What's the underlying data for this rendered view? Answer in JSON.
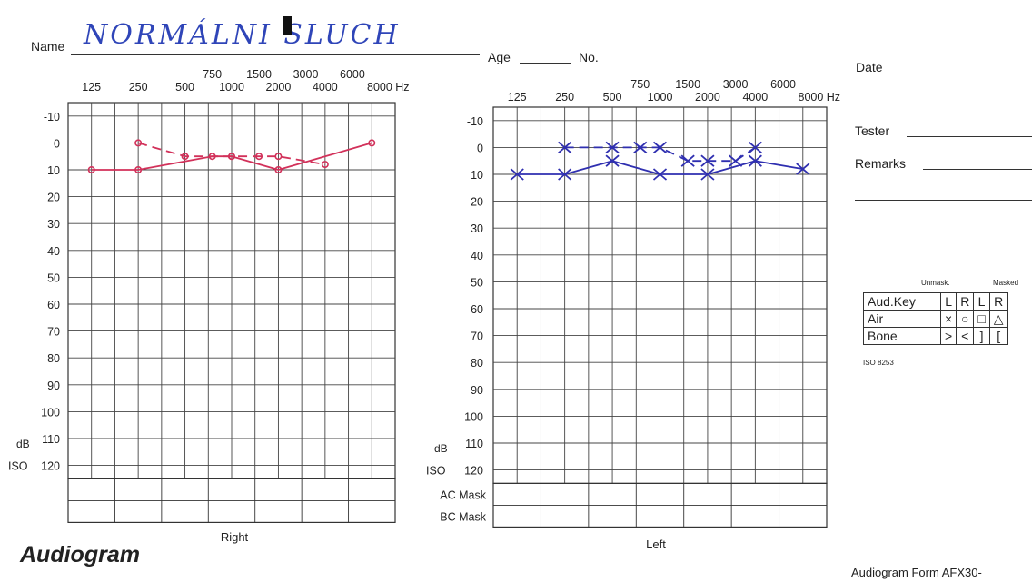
{
  "header": {
    "name_label": "Name",
    "name_value": "NORMÁLNI SLUCH",
    "age_label": "Age",
    "no_label": "No.",
    "date_label": "Date",
    "tester_label": "Tester",
    "remarks_label": "Remarks"
  },
  "audio_key": {
    "col_head_unmasked": "Unmask.",
    "col_head_masked": "Masked",
    "header_cells": [
      "Aud.Key",
      "L",
      "R",
      "L",
      "R"
    ],
    "air_cells": [
      "Air",
      "×",
      "○",
      "□",
      "△"
    ],
    "bone_cells": [
      "Bone",
      ">",
      "<",
      "]",
      "["
    ],
    "standard": "ISO 8253"
  },
  "footer": {
    "title": "Audiogram",
    "form_id": "Audiogram Form AFX30-"
  },
  "colors": {
    "right_ear": "#d2315a",
    "left_ear": "#2f2fb0"
  },
  "chart_data": [
    {
      "type": "line",
      "caption": "Right",
      "x_scale": "log",
      "x_ticks_lower": [
        "125",
        "250",
        "500",
        "1000",
        "2000",
        "4000",
        "8000 Hz"
      ],
      "x_ticks_upper": [
        "750",
        "1500",
        "3000",
        "6000"
      ],
      "y_ticks": [
        "-10",
        "0",
        "10",
        "20",
        "30",
        "40",
        "50",
        "60",
        "70",
        "80",
        "90",
        "100",
        "110",
        "120"
      ],
      "y_unit_top": "dB",
      "y_unit_bottom": "ISO",
      "ylim": [
        -10,
        120
      ],
      "y_inverted": true,
      "mask_rows": [],
      "series": [
        {
          "style": "solid",
          "color": "#d2315a",
          "x": [
            125,
            250,
            750,
            1000,
            2000,
            8000
          ],
          "y": [
            10,
            10,
            5,
            5,
            10,
            0
          ]
        },
        {
          "style": "dashed",
          "color": "#d2315a",
          "x": [
            250,
            500,
            1000,
            1500,
            2000,
            4000
          ],
          "y": [
            0,
            5,
            5,
            5,
            5,
            8
          ]
        }
      ]
    },
    {
      "type": "line",
      "caption": "Left",
      "x_scale": "log",
      "x_ticks_lower": [
        "125",
        "250",
        "500",
        "1000",
        "2000",
        "4000",
        "8000 Hz"
      ],
      "x_ticks_upper": [
        "750",
        "1500",
        "3000",
        "6000"
      ],
      "y_ticks": [
        "-10",
        "0",
        "10",
        "20",
        "30",
        "40",
        "50",
        "60",
        "70",
        "80",
        "90",
        "100",
        "110",
        "120"
      ],
      "y_unit_top": "dB",
      "y_unit_bottom": "ISO",
      "ylim": [
        -10,
        120
      ],
      "y_inverted": true,
      "mask_rows": [
        "AC Mask",
        "BC Mask"
      ],
      "series": [
        {
          "style": "solid",
          "color": "#2f2fb0",
          "x": [
            125,
            250,
            500,
            1000,
            2000,
            4000,
            8000
          ],
          "y": [
            10,
            10,
            5,
            10,
            10,
            5,
            8
          ]
        },
        {
          "style": "dashed",
          "color": "#2f2fb0",
          "x": [
            250,
            500,
            750,
            1000,
            1500,
            2000,
            3000,
            4000
          ],
          "y": [
            0,
            0,
            0,
            0,
            5,
            5,
            5,
            0
          ]
        }
      ]
    }
  ]
}
